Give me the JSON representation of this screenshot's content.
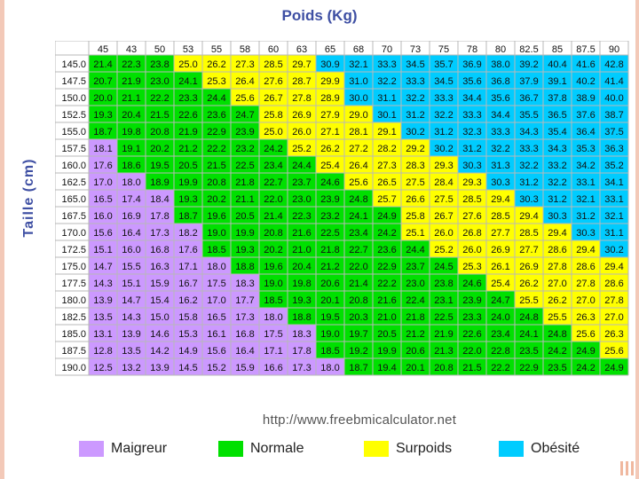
{
  "chart_data": {
    "type": "heatmap",
    "xlabel": "Poids (Kg)",
    "ylabel": "Taille (cm)",
    "x": [
      "45",
      "43",
      "50",
      "53",
      "55",
      "58",
      "60",
      "63",
      "65",
      "68",
      "70",
      "73",
      "75",
      "78",
      "80",
      "82.5",
      "85",
      "87.5",
      "90"
    ],
    "y": [
      "145.0",
      "147.5",
      "150.0",
      "152.5",
      "155.0",
      "157.5",
      "160.0",
      "162.5",
      "165.0",
      "167.5",
      "170.0",
      "172.5",
      "175.0",
      "177.5",
      "180.0",
      "182.5",
      "185.0",
      "187.5",
      "190.0"
    ],
    "values": [
      [
        "21.4",
        "22.3",
        "23.8",
        "25.0",
        "26.2",
        "27.3",
        "28.5",
        "29.7",
        "30.9",
        "32.1",
        "33.3",
        "34.5",
        "35.7",
        "36.9",
        "38.0",
        "39.2",
        "40.4",
        "41.6",
        "42.8"
      ],
      [
        "20.7",
        "21.9",
        "23.0",
        "24.1",
        "25.3",
        "26.4",
        "27.6",
        "28.7",
        "29.9",
        "31.0",
        "32.2",
        "33.3",
        "34.5",
        "35.6",
        "36.8",
        "37.9",
        "39.1",
        "40.2",
        "41.4"
      ],
      [
        "20.0",
        "21.1",
        "22.2",
        "23.3",
        "24.4",
        "25.6",
        "26.7",
        "27.8",
        "28.9",
        "30.0",
        "31.1",
        "32.2",
        "33.3",
        "34.4",
        "35.6",
        "36.7",
        "37.8",
        "38.9",
        "40.0"
      ],
      [
        "19.3",
        "20.4",
        "21.5",
        "22.6",
        "23.6",
        "24.7",
        "25.8",
        "26.9",
        "27.9",
        "29.0",
        "30.1",
        "31.2",
        "32.2",
        "33.3",
        "34.4",
        "35.5",
        "36.5",
        "37.6",
        "38.7"
      ],
      [
        "18.7",
        "19.8",
        "20.8",
        "21.9",
        "22.9",
        "23.9",
        "25.0",
        "26.0",
        "27.1",
        "28.1",
        "29.1",
        "30.2",
        "31.2",
        "32.3",
        "33.3",
        "34.3",
        "35.4",
        "36.4",
        "37.5"
      ],
      [
        "18.1",
        "19.1",
        "20.2",
        "21.2",
        "22.2",
        "23.2",
        "24.2",
        "25.2",
        "26.2",
        "27.2",
        "28.2",
        "29.2",
        "30.2",
        "31.2",
        "32.2",
        "33.3",
        "34.3",
        "35.3",
        "36.3"
      ],
      [
        "17.6",
        "18.6",
        "19.5",
        "20.5",
        "21.5",
        "22.5",
        "23.4",
        "24.4",
        "25.4",
        "26.4",
        "27.3",
        "28.3",
        "29.3",
        "30.3",
        "31.3",
        "32.2",
        "33.2",
        "34.2",
        "35.2"
      ],
      [
        "17.0",
        "18.0",
        "18.9",
        "19.9",
        "20.8",
        "21.8",
        "22.7",
        "23.7",
        "24.6",
        "25.6",
        "26.5",
        "27.5",
        "28.4",
        "29.3",
        "30.3",
        "31.2",
        "32.2",
        "33.1",
        "34.1"
      ],
      [
        "16.5",
        "17.4",
        "18.4",
        "19.3",
        "20.2",
        "21.1",
        "22.0",
        "23.0",
        "23.9",
        "24.8",
        "25.7",
        "26.6",
        "27.5",
        "28.5",
        "29.4",
        "30.3",
        "31.2",
        "32.1",
        "33.1"
      ],
      [
        "16.0",
        "16.9",
        "17.8",
        "18.7",
        "19.6",
        "20.5",
        "21.4",
        "22.3",
        "23.2",
        "24.1",
        "24.9",
        "25.8",
        "26.7",
        "27.6",
        "28.5",
        "29.4",
        "30.3",
        "31.2",
        "32.1"
      ],
      [
        "15.6",
        "16.4",
        "17.3",
        "18.2",
        "19.0",
        "19.9",
        "20.8",
        "21.6",
        "22.5",
        "23.4",
        "24.2",
        "25.1",
        "26.0",
        "26.8",
        "27.7",
        "28.5",
        "29.4",
        "30.3",
        "31.1"
      ],
      [
        "15.1",
        "16.0",
        "16.8",
        "17.6",
        "18.5",
        "19.3",
        "20.2",
        "21.0",
        "21.8",
        "22.7",
        "23.6",
        "24.4",
        "25.2",
        "26.0",
        "26.9",
        "27.7",
        "28.6",
        "29.4",
        "30.2"
      ],
      [
        "14.7",
        "15.5",
        "16.3",
        "17.1",
        "18.0",
        "18.8",
        "19.6",
        "20.4",
        "21.2",
        "22.0",
        "22.9",
        "23.7",
        "24.5",
        "25.3",
        "26.1",
        "26.9",
        "27.8",
        "28.6",
        "29.4"
      ],
      [
        "14.3",
        "15.1",
        "15.9",
        "16.7",
        "17.5",
        "18.3",
        "19.0",
        "19.8",
        "20.6",
        "21.4",
        "22.2",
        "23.0",
        "23.8",
        "24.6",
        "25.4",
        "26.2",
        "27.0",
        "27.8",
        "28.6"
      ],
      [
        "13.9",
        "14.7",
        "15.4",
        "16.2",
        "17.0",
        "17.7",
        "18.5",
        "19.3",
        "20.1",
        "20.8",
        "21.6",
        "22.4",
        "23.1",
        "23.9",
        "24.7",
        "25.5",
        "26.2",
        "27.0",
        "27.8"
      ],
      [
        "13.5",
        "14.3",
        "15.0",
        "15.8",
        "16.5",
        "17.3",
        "18.0",
        "18.8",
        "19.5",
        "20.3",
        "21.0",
        "21.8",
        "22.5",
        "23.3",
        "24.0",
        "24.8",
        "25.5",
        "26.3",
        "27.0"
      ],
      [
        "13.1",
        "13.9",
        "14.6",
        "15.3",
        "16.1",
        "16.8",
        "17.5",
        "18.3",
        "19.0",
        "19.7",
        "20.5",
        "21.2",
        "21.9",
        "22.6",
        "23.4",
        "24.1",
        "24.8",
        "25.6",
        "26.3"
      ],
      [
        "12.8",
        "13.5",
        "14.2",
        "14.9",
        "15.6",
        "16.4",
        "17.1",
        "17.8",
        "18.5",
        "19.2",
        "19.9",
        "20.6",
        "21.3",
        "22.0",
        "22.8",
        "23.5",
        "24.2",
        "24.9",
        "25.6"
      ],
      [
        "12.5",
        "13.2",
        "13.9",
        "14.5",
        "15.2",
        "15.9",
        "16.6",
        "17.3",
        "18.0",
        "18.7",
        "19.4",
        "20.1",
        "20.8",
        "21.5",
        "22.2",
        "22.9",
        "23.5",
        "24.2",
        "24.9"
      ]
    ],
    "categories_legend": [
      {
        "label": "Maigreur",
        "color": "#cc99ff",
        "max": 18.5
      },
      {
        "label": "Normale",
        "color": "#00e000",
        "max": 25
      },
      {
        "label": "Surpoids",
        "color": "#ffff00",
        "max": 30
      },
      {
        "label": "Obésité",
        "color": "#00ccff",
        "max": 1000
      }
    ],
    "source": "http://www.freebmicalculator.net"
  }
}
